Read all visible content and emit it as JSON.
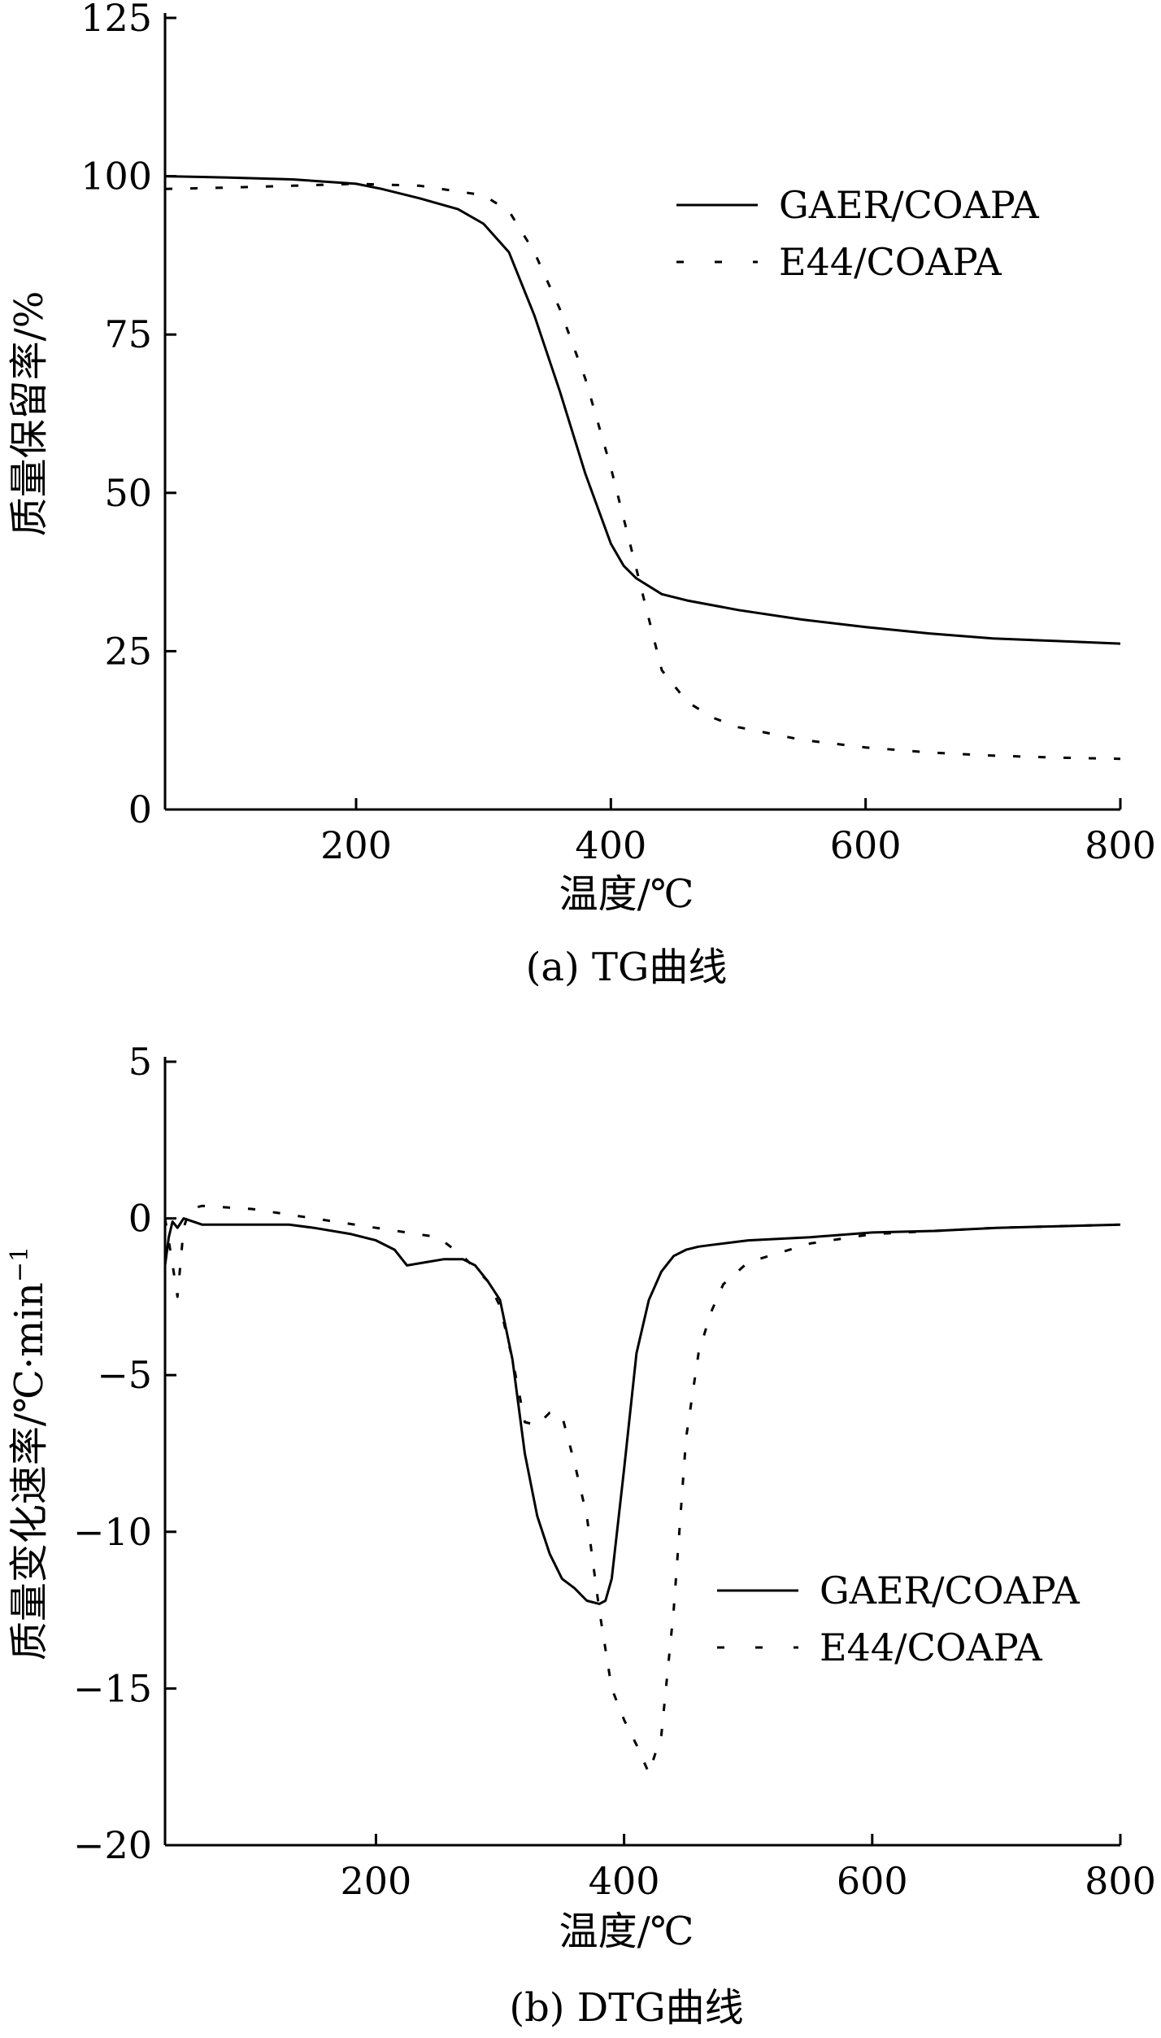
{
  "chart_data": [
    {
      "type": "line",
      "caption": "(a) TG曲线",
      "xlabel": "温度/℃",
      "ylabel": "质量保留率/%",
      "xlim": [
        50,
        800
      ],
      "ylim": [
        0,
        125
      ],
      "xticks": [
        200,
        400,
        600,
        800
      ],
      "yticks": [
        0,
        25,
        50,
        75,
        100,
        125
      ],
      "grid": false,
      "legend_position": "top-right",
      "series": [
        {
          "name": "GAER/COAPA",
          "style": "solid",
          "color": "#000000",
          "x": [
            50,
            100,
            150,
            200,
            220,
            250,
            280,
            300,
            320,
            340,
            360,
            380,
            400,
            410,
            420,
            440,
            460,
            500,
            550,
            600,
            650,
            700,
            750,
            800
          ],
          "y": [
            100,
            99.8,
            99.5,
            98.8,
            98,
            96.5,
            94.8,
            92.5,
            88,
            78,
            66,
            53,
            42,
            38.5,
            36.5,
            34,
            33,
            31.5,
            30,
            28.8,
            27.8,
            27,
            26.6,
            26.2
          ]
        },
        {
          "name": "E44/COAPA",
          "style": "dashed",
          "color": "#000000",
          "x": [
            50,
            100,
            150,
            200,
            250,
            300,
            320,
            340,
            360,
            380,
            400,
            410,
            420,
            430,
            440,
            460,
            480,
            500,
            550,
            600,
            650,
            700,
            750,
            800
          ],
          "y": [
            98,
            98.2,
            98.5,
            98.8,
            98.5,
            97,
            94.5,
            88,
            79,
            68,
            54,
            46,
            38,
            30,
            22,
            17,
            14.5,
            13,
            11,
            9.8,
            9,
            8.5,
            8.2,
            8
          ]
        }
      ]
    },
    {
      "type": "line",
      "caption": "(b) DTG曲线",
      "xlabel": "温度/℃",
      "ylabel": "质量变化速率/℃·min",
      "ylabel_superscript": "−1",
      "xlim": [
        30,
        800
      ],
      "ylim": [
        -20,
        5
      ],
      "xticks": [
        200,
        400,
        600,
        800
      ],
      "yticks": [
        5,
        0,
        -5,
        -10,
        -15,
        -20
      ],
      "ytick_labels": [
        "5",
        "0",
        "−5",
        "−10",
        "−15",
        "−20"
      ],
      "grid": false,
      "legend_position": "bottom-right",
      "series": [
        {
          "name": "GAER/COAPA",
          "style": "solid",
          "color": "#000000",
          "x": [
            30,
            33,
            36,
            40,
            45,
            60,
            100,
            130,
            150,
            180,
            200,
            215,
            225,
            240,
            255,
            270,
            280,
            290,
            300,
            310,
            320,
            330,
            340,
            350,
            360,
            370,
            380,
            385,
            390,
            400,
            410,
            420,
            430,
            440,
            450,
            460,
            470,
            500,
            550,
            600,
            650,
            700,
            750,
            800
          ],
          "y": [
            -1.5,
            -0.6,
            -0.1,
            -0.3,
            0,
            -0.2,
            -0.2,
            -0.2,
            -0.3,
            -0.5,
            -0.7,
            -1,
            -1.5,
            -1.4,
            -1.3,
            -1.3,
            -1.5,
            -2,
            -2.6,
            -4.5,
            -7.5,
            -9.5,
            -10.7,
            -11.5,
            -11.8,
            -12.2,
            -12.3,
            -12.2,
            -11.5,
            -8,
            -4.3,
            -2.6,
            -1.7,
            -1.2,
            -1,
            -0.9,
            -0.85,
            -0.7,
            -0.6,
            -0.45,
            -0.4,
            -0.3,
            -0.25,
            -0.2
          ]
        },
        {
          "name": "E44/COAPA",
          "style": "dashed",
          "color": "#000000",
          "x": [
            30,
            35,
            40,
            45,
            50,
            60,
            100,
            150,
            200,
            250,
            270,
            290,
            300,
            310,
            320,
            330,
            340,
            350,
            360,
            370,
            380,
            390,
            400,
            410,
            420,
            430,
            440,
            450,
            460,
            470,
            480,
            500,
            550,
            600,
            650,
            700,
            750,
            800
          ],
          "y": [
            0,
            -1.2,
            -2.5,
            -0.3,
            0.3,
            0.4,
            0.3,
            0,
            -0.3,
            -0.6,
            -1.2,
            -2,
            -2.8,
            -4.5,
            -6.5,
            -6.6,
            -6.2,
            -6.3,
            -7.8,
            -9.5,
            -12.5,
            -15,
            -16,
            -16.8,
            -17.7,
            -16.5,
            -12.5,
            -7,
            -4.3,
            -3,
            -2.1,
            -1.4,
            -0.8,
            -0.5,
            -0.4,
            -0.3,
            -0.25,
            -0.2
          ]
        }
      ]
    }
  ]
}
